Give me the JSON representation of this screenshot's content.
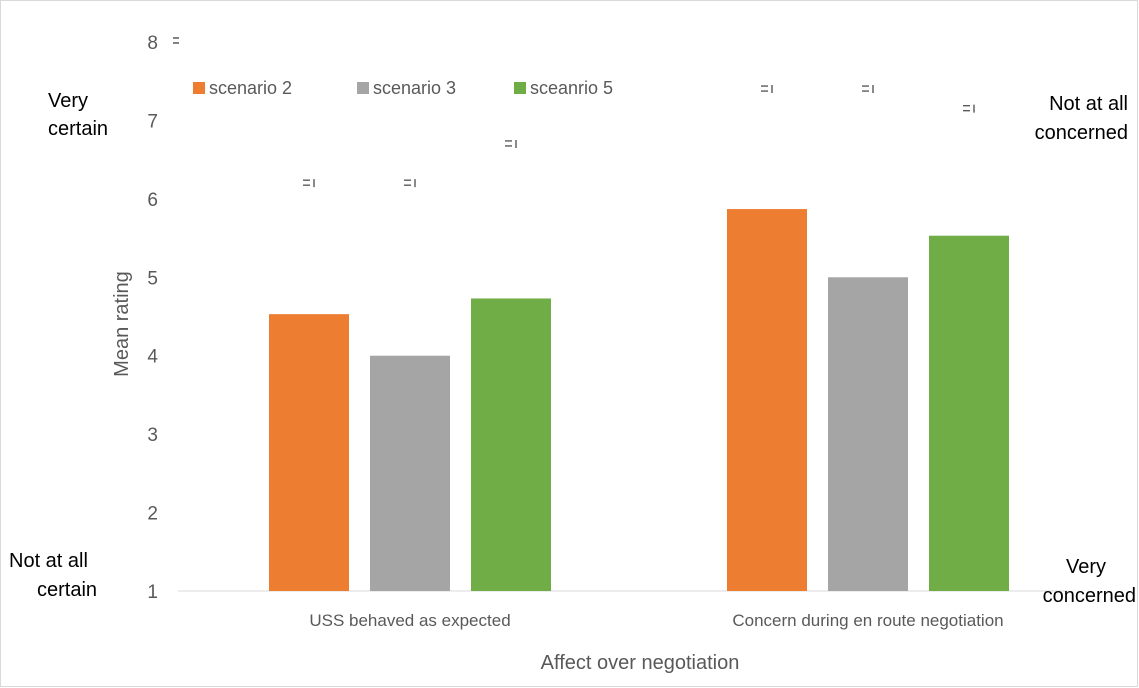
{
  "chart_data": {
    "type": "bar",
    "title": "",
    "xlabel": "Affect over negotiation",
    "ylabel": "Mean rating",
    "ylim": [
      1,
      8
    ],
    "y_ticks": [
      "1",
      "2",
      "3",
      "4",
      "5",
      "6",
      "7",
      "8"
    ],
    "categories": [
      "USS behaved as expected",
      "Concern during en route negotiation"
    ],
    "series": [
      {
        "name": "scenario 2",
        "color": "#ED7D31",
        "values": [
          4.53,
          5.87
        ],
        "error_upper": [
          6.2,
          7.4
        ]
      },
      {
        "name": "scenario 3",
        "color": "#A5A5A5",
        "values": [
          4.0,
          5.0
        ],
        "error_upper": [
          6.2,
          7.4
        ]
      },
      {
        "name": "sceanrio 5",
        "color": "#70AD47",
        "values": [
          4.73,
          5.53
        ],
        "error_upper": [
          6.7,
          7.15
        ]
      }
    ],
    "legend_position": "top-left",
    "grid": false,
    "annotations": {
      "left_top": [
        "Very",
        "certain"
      ],
      "left_bottom": [
        "Not at all",
        "certain"
      ],
      "right_top": [
        "Not at all",
        "concerned"
      ],
      "right_bottom": [
        "Very",
        "concerned"
      ]
    }
  }
}
